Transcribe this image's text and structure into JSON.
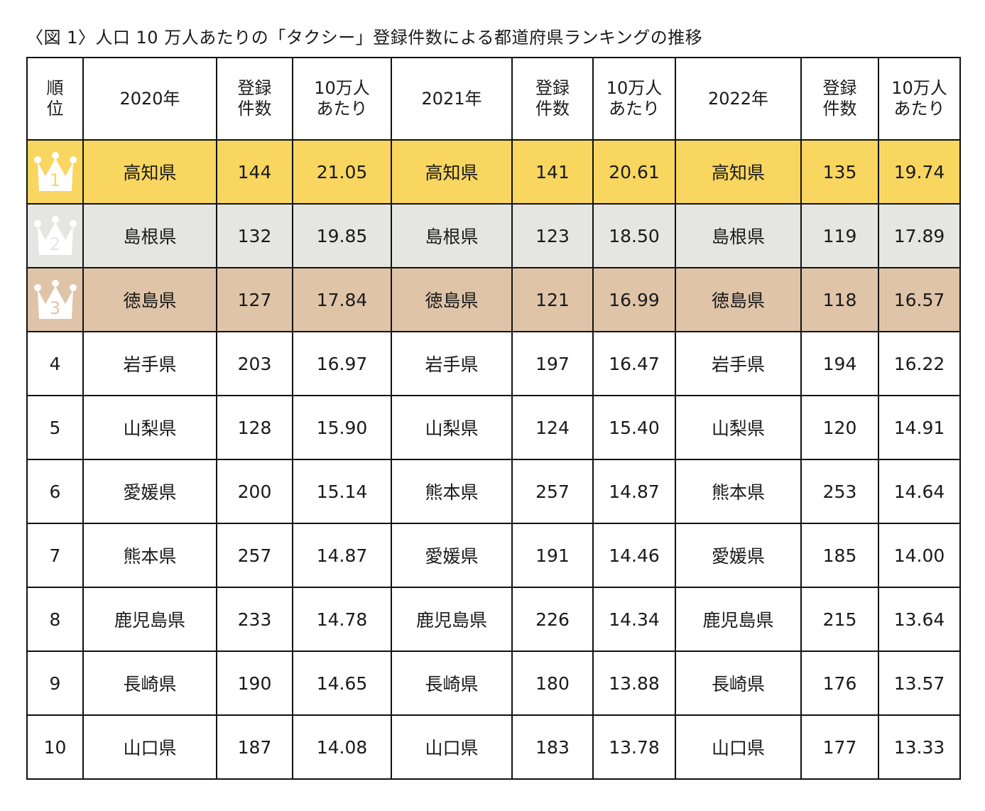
{
  "title": "〈図 1〉人口 10 万人あたりの「タクシー」登録件数による都道府県ランキングの推移",
  "headers": {
    "rank": [
      "順",
      "位"
    ],
    "year_2020": "2020年",
    "year_2021": "2021年",
    "year_2022": "2022年",
    "count": [
      "登録",
      "件数"
    ],
    "per100k": [
      "10万人",
      "あたり"
    ]
  },
  "colors": {
    "gold": "#f8d660",
    "silver": "#e5e5e2",
    "bronze": "#dfc4a8"
  },
  "rows": [
    {
      "rank": "1",
      "icon": "crown-icon",
      "p2020": "高知県",
      "c2020": "144",
      "r2020": "21.05",
      "p2021": "高知県",
      "c2021": "141",
      "r2021": "20.61",
      "p2022": "高知県",
      "c2022": "135",
      "r2022": "19.74"
    },
    {
      "rank": "2",
      "icon": "crown-icon",
      "p2020": "島根県",
      "c2020": "132",
      "r2020": "19.85",
      "p2021": "島根県",
      "c2021": "123",
      "r2021": "18.50",
      "p2022": "島根県",
      "c2022": "119",
      "r2022": "17.89"
    },
    {
      "rank": "3",
      "icon": "crown-icon",
      "p2020": "徳島県",
      "c2020": "127",
      "r2020": "17.84",
      "p2021": "徳島県",
      "c2021": "121",
      "r2021": "16.99",
      "p2022": "徳島県",
      "c2022": "118",
      "r2022": "16.57"
    },
    {
      "rank": "4",
      "p2020": "岩手県",
      "c2020": "203",
      "r2020": "16.97",
      "p2021": "岩手県",
      "c2021": "197",
      "r2021": "16.47",
      "p2022": "岩手県",
      "c2022": "194",
      "r2022": "16.22"
    },
    {
      "rank": "5",
      "p2020": "山梨県",
      "c2020": "128",
      "r2020": "15.90",
      "p2021": "山梨県",
      "c2021": "124",
      "r2021": "15.40",
      "p2022": "山梨県",
      "c2022": "120",
      "r2022": "14.91"
    },
    {
      "rank": "6",
      "p2020": "愛媛県",
      "c2020": "200",
      "r2020": "15.14",
      "p2021": "熊本県",
      "c2021": "257",
      "r2021": "14.87",
      "p2022": "熊本県",
      "c2022": "253",
      "r2022": "14.64"
    },
    {
      "rank": "7",
      "p2020": "熊本県",
      "c2020": "257",
      "r2020": "14.87",
      "p2021": "愛媛県",
      "c2021": "191",
      "r2021": "14.46",
      "p2022": "愛媛県",
      "c2022": "185",
      "r2022": "14.00"
    },
    {
      "rank": "8",
      "p2020": "鹿児島県",
      "c2020": "233",
      "r2020": "14.78",
      "p2021": "鹿児島県",
      "c2021": "226",
      "r2021": "14.34",
      "p2022": "鹿児島県",
      "c2022": "215",
      "r2022": "13.64"
    },
    {
      "rank": "9",
      "p2020": "長崎県",
      "c2020": "190",
      "r2020": "14.65",
      "p2021": "長崎県",
      "c2021": "180",
      "r2021": "13.88",
      "p2022": "長崎県",
      "c2022": "176",
      "r2022": "13.57"
    },
    {
      "rank": "10",
      "p2020": "山口県",
      "c2020": "187",
      "r2020": "14.08",
      "p2021": "山口県",
      "c2021": "183",
      "r2021": "13.78",
      "p2022": "山口県",
      "c2022": "177",
      "r2022": "13.33"
    }
  ]
}
